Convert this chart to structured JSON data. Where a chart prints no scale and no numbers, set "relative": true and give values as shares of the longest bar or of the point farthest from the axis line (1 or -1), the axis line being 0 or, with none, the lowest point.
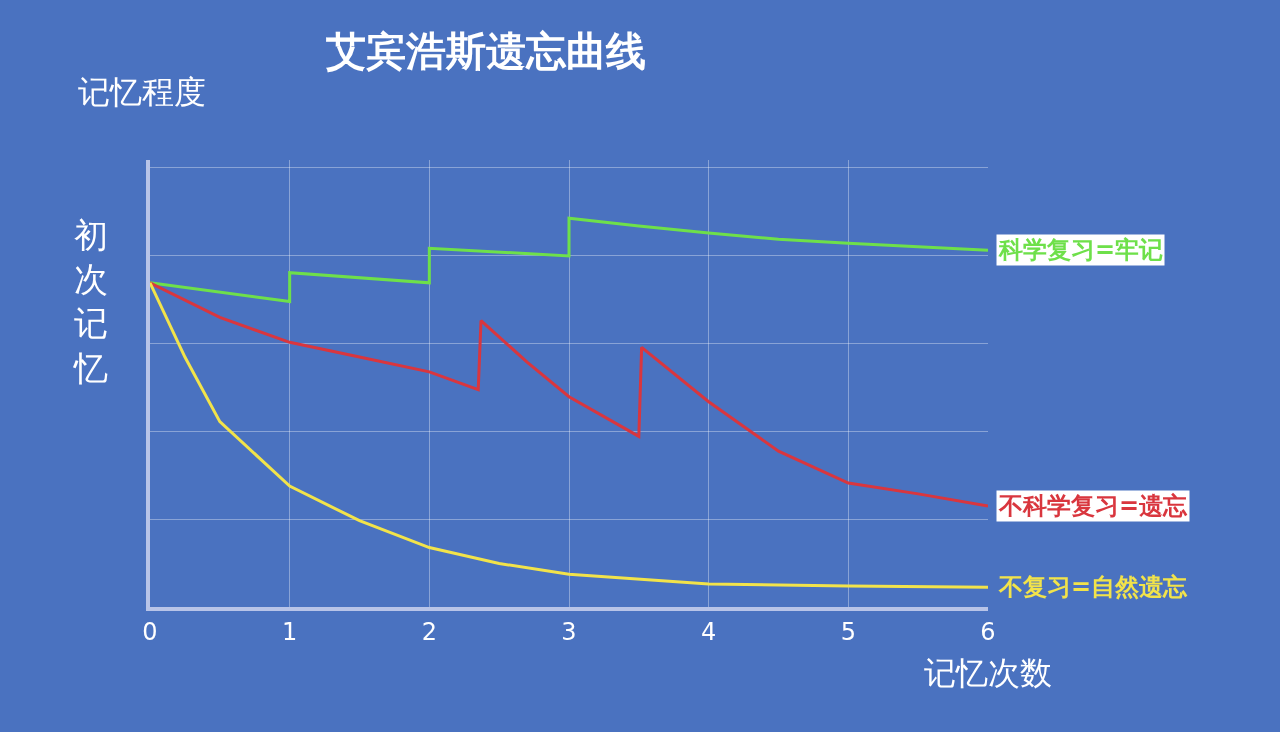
{
  "chart_data": {
    "type": "line",
    "title": "艾宾浩斯遗忘曲线",
    "xlabel": "记忆次数",
    "ylabel": "记忆程度",
    "relative": true,
    "grid": true,
    "legend": false,
    "marker": "none",
    "line_style": "solid",
    "xlim": [
      0,
      6
    ],
    "xticks": [
      0,
      1,
      2,
      3,
      4,
      5,
      6
    ],
    "tick_labels": "x",
    "annotations": [
      "初次记忆"
    ],
    "series": [
      {
        "name": "科学复习=牢记",
        "color": "#6ee04a",
        "x": [
          0,
          1,
          1,
          2,
          2,
          3,
          3,
          3.5,
          4,
          4.5,
          5,
          6
        ],
        "values": [
          0.834,
          0.786,
          0.86,
          0.834,
          0.923,
          0.903,
          1.0,
          0.98,
          0.962,
          0.946,
          0.936,
          0.918
        ]
      },
      {
        "name": "不科学复习=遗忘",
        "color": "#d9363e",
        "x": [
          0,
          0.5,
          1,
          1.5,
          2,
          2.35,
          2.37,
          2.7,
          3,
          3.5,
          3.52,
          4,
          4.5,
          5,
          5.5,
          6
        ],
        "values": [
          0.834,
          0.745,
          0.681,
          0.643,
          0.605,
          0.559,
          0.737,
          0.63,
          0.541,
          0.439,
          0.668,
          0.528,
          0.401,
          0.319,
          0.291,
          0.26
        ]
      },
      {
        "name": "不复习=自然遗忘",
        "color": "#f2e34a",
        "x": [
          0,
          0.25,
          0.5,
          1,
          1.5,
          2,
          2.5,
          3,
          4,
          5,
          6
        ],
        "values": [
          0.834,
          0.643,
          0.477,
          0.311,
          0.222,
          0.153,
          0.112,
          0.084,
          0.059,
          0.054,
          0.051
        ]
      }
    ]
  }
}
